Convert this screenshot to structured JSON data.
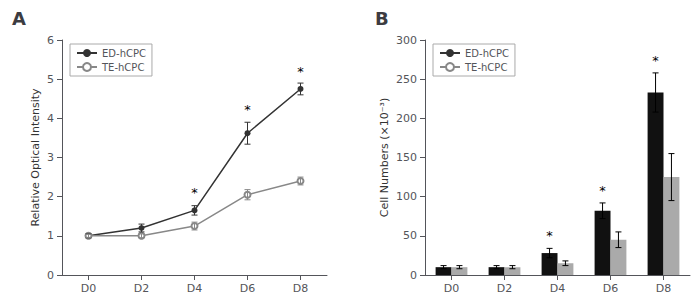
{
  "chart_data": [
    {
      "type": "line",
      "title": "A",
      "ylabel": "Relative Optical Intensity",
      "categories": [
        "D0",
        "D2",
        "D4",
        "D6",
        "D8"
      ],
      "series": [
        {
          "name": "ED-hCPC",
          "color": "#333333",
          "marker": "circle",
          "values": [
            1.0,
            1.2,
            1.65,
            3.62,
            4.75
          ],
          "errors": [
            0.05,
            0.1,
            0.12,
            0.28,
            0.15
          ]
        },
        {
          "name": "TE-hCPC",
          "color": "#888888",
          "marker": "open_circle",
          "values": [
            1.0,
            1.0,
            1.25,
            2.05,
            2.4
          ],
          "errors": [
            0.04,
            0.05,
            0.1,
            0.13,
            0.1
          ]
        }
      ],
      "ylim": [
        0,
        6
      ],
      "yticks": [
        0,
        1,
        2,
        3,
        4,
        5,
        6
      ],
      "grid": false,
      "legend": "upper left",
      "annotations": [
        {
          "x": "D4",
          "y": 1.95,
          "text": "*"
        },
        {
          "x": "D6",
          "y": 4.05,
          "text": "*"
        },
        {
          "x": "D8",
          "y": 5.02,
          "text": "*"
        }
      ]
    },
    {
      "type": "bar",
      "title": "B",
      "ylabel": "Cell Numbers (×10⁻³)",
      "categories": [
        "D0",
        "D2",
        "D4",
        "D6",
        "D8"
      ],
      "series": [
        {
          "name": "ED-hCPC",
          "color": "#111111",
          "values": [
            10,
            10,
            28,
            82,
            233
          ],
          "errors": [
            2,
            2,
            6,
            10,
            25
          ]
        },
        {
          "name": "TE-hCPC",
          "color": "#aaaaaa",
          "values": [
            10,
            10,
            15,
            45,
            125
          ],
          "errors": [
            2,
            2,
            3,
            10,
            30
          ]
        }
      ],
      "ylim": [
        0,
        300
      ],
      "yticks": [
        0,
        50,
        100,
        150,
        200,
        250,
        300
      ],
      "grid": false,
      "legend": "upper left",
      "annotations": [
        {
          "x": "D4",
          "y": 42,
          "text": "*",
          "series": "ED-hCPC"
        },
        {
          "x": "D6",
          "y": 100,
          "text": "*",
          "series": "ED-hCPC"
        },
        {
          "x": "D8",
          "y": 266,
          "text": "*",
          "series": "ED-hCPC"
        }
      ]
    }
  ]
}
